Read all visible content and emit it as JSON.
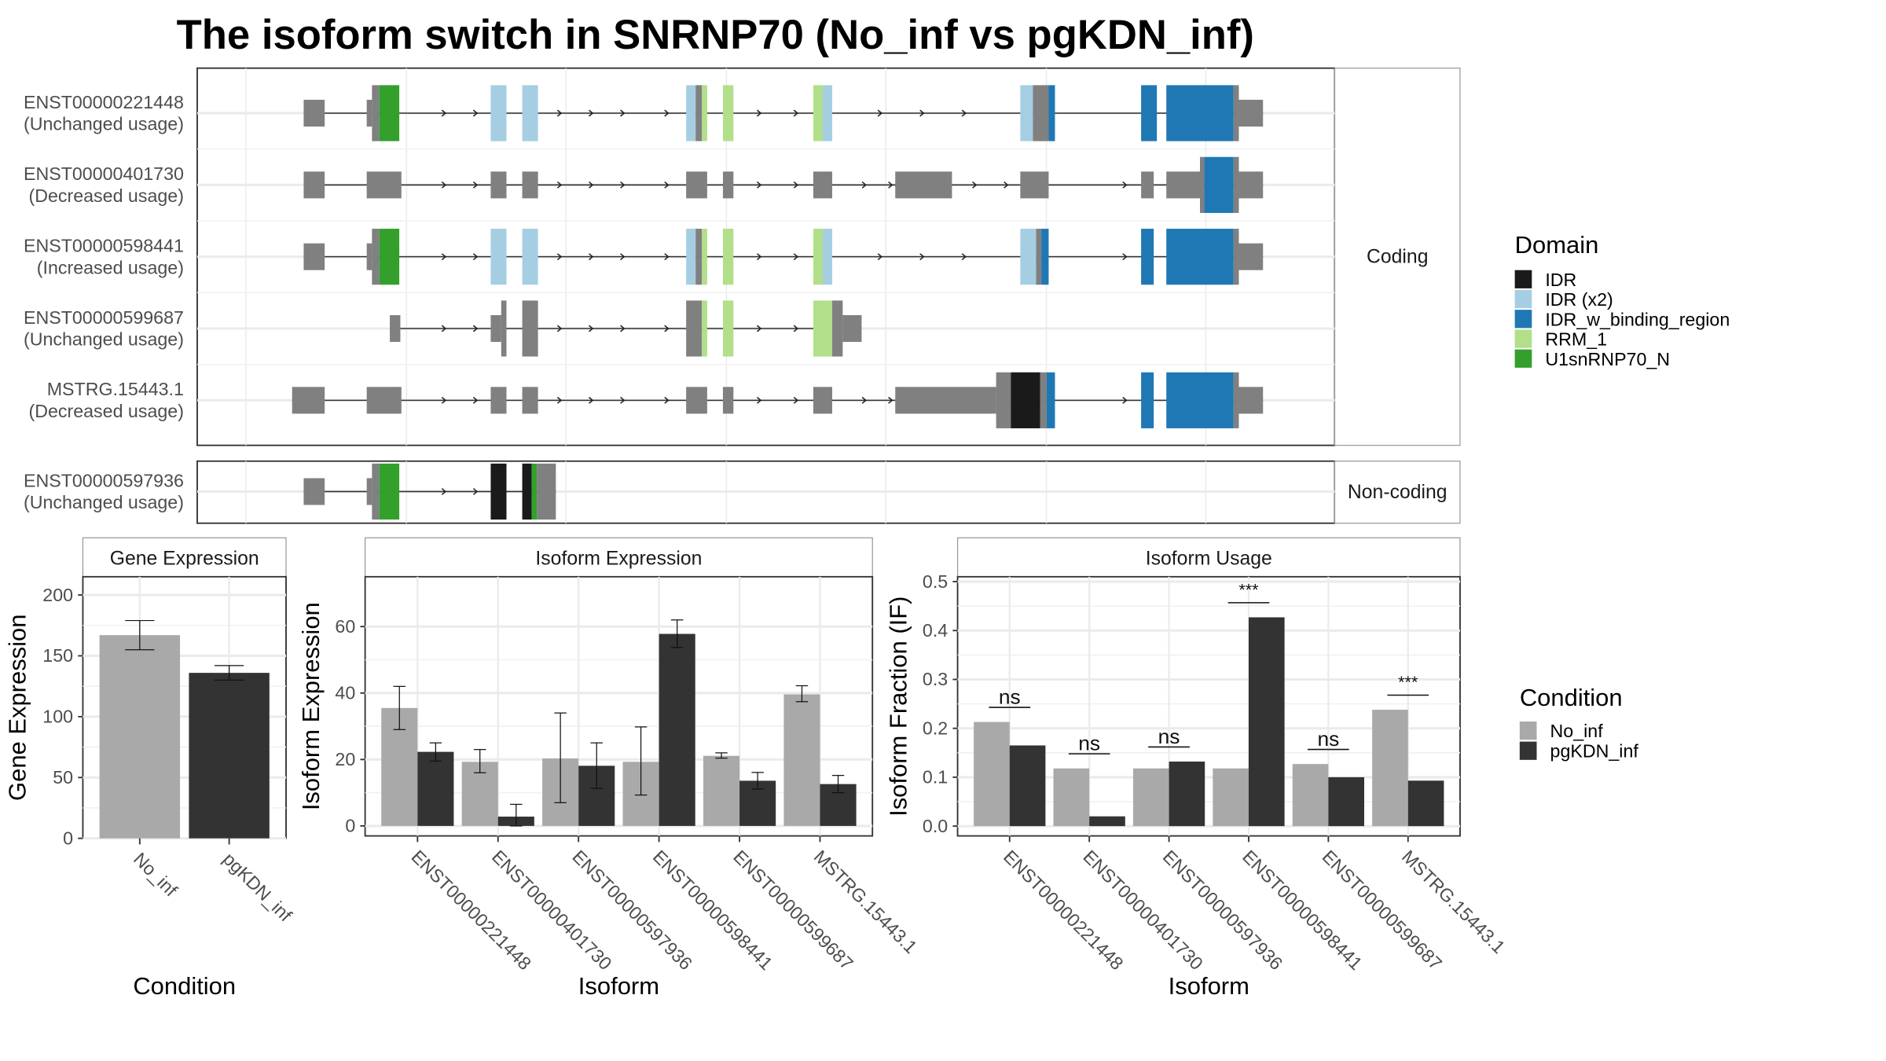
{
  "title": "The isoform switch in SNRNP70 (No_inf vs pgKDN_inf)",
  "domain_legend": {
    "title": "Domain",
    "items": [
      {
        "label": "IDR",
        "color": "#1a1a1a"
      },
      {
        "label": "IDR (x2)",
        "color": "#a6cee3"
      },
      {
        "label": "IDR_w_binding_region",
        "color": "#1f78b4"
      },
      {
        "label": "RRM_1",
        "color": "#b2df8a"
      },
      {
        "label": "U1snRNP70_N",
        "color": "#33a02c"
      }
    ]
  },
  "condition_legend": {
    "title": "Condition",
    "items": [
      {
        "label": "No_inf",
        "color": "#a9a9a9"
      },
      {
        "label": "pgKDN_inf",
        "color": "#333333"
      }
    ]
  },
  "colors": {
    "utr": "#808080",
    "intron": "#333333"
  },
  "chart_data": [
    {
      "type": "transcript-structure",
      "coordinate_units": "relative genomic position (0-1000)",
      "facets": [
        {
          "label": "Coding",
          "transcripts": [
            {
              "id": "ENST00000221448",
              "note": "(Unchanged usage)",
              "exons": [
                {
                  "s": 55,
                  "e": 75,
                  "t": "utr"
                },
                {
                  "s": 115,
                  "e": 120,
                  "t": "utr"
                },
                {
                  "s": 120,
                  "e": 127,
                  "t": "cds"
                },
                {
                  "s": 127,
                  "e": 146,
                  "t": "U1snRNP70_N"
                },
                {
                  "s": 233,
                  "e": 248,
                  "t": "IDR (x2)"
                },
                {
                  "s": 263,
                  "e": 278,
                  "t": "IDR (x2)"
                },
                {
                  "s": 419,
                  "e": 428,
                  "t": "IDR (x2)"
                },
                {
                  "s": 428,
                  "e": 434,
                  "t": "cds"
                },
                {
                  "s": 434,
                  "e": 439,
                  "t": "RRM_1"
                },
                {
                  "s": 454,
                  "e": 464,
                  "t": "RRM_1"
                },
                {
                  "s": 540,
                  "e": 549,
                  "t": "RRM_1"
                },
                {
                  "s": 549,
                  "e": 558,
                  "t": "IDR (x2)"
                },
                {
                  "s": 737,
                  "e": 749,
                  "t": "IDR (x2)"
                },
                {
                  "s": 749,
                  "e": 764,
                  "t": "cds"
                },
                {
                  "s": 764,
                  "e": 770,
                  "t": "IDR_w_binding_region"
                },
                {
                  "s": 852,
                  "e": 867,
                  "t": "IDR_w_binding_region"
                },
                {
                  "s": 876,
                  "e": 940,
                  "t": "IDR_w_binding_region"
                },
                {
                  "s": 940,
                  "e": 945,
                  "t": "cds"
                },
                {
                  "s": 945,
                  "e": 968,
                  "t": "utr"
                }
              ],
              "arrows": [
                190,
                220,
                300,
                330,
                360,
                402,
                490,
                525,
                605,
                645,
                685
              ]
            },
            {
              "id": "ENST00000401730",
              "note": "(Decreased usage)",
              "exons": [
                {
                  "s": 55,
                  "e": 75,
                  "t": "utr"
                },
                {
                  "s": 115,
                  "e": 148,
                  "t": "utr"
                },
                {
                  "s": 233,
                  "e": 248,
                  "t": "utr"
                },
                {
                  "s": 263,
                  "e": 278,
                  "t": "utr"
                },
                {
                  "s": 419,
                  "e": 439,
                  "t": "utr"
                },
                {
                  "s": 454,
                  "e": 464,
                  "t": "utr"
                },
                {
                  "s": 540,
                  "e": 558,
                  "t": "utr"
                },
                {
                  "s": 618,
                  "e": 672,
                  "t": "utr"
                },
                {
                  "s": 737,
                  "e": 764,
                  "t": "utr"
                },
                {
                  "s": 852,
                  "e": 864,
                  "t": "utr"
                },
                {
                  "s": 876,
                  "e": 908,
                  "t": "utr"
                },
                {
                  "s": 908,
                  "e": 912,
                  "t": "cds"
                },
                {
                  "s": 912,
                  "e": 940,
                  "t": "IDR_w_binding_region"
                },
                {
                  "s": 940,
                  "e": 945,
                  "t": "cds"
                },
                {
                  "s": 945,
                  "e": 968,
                  "t": "utr"
                }
              ],
              "arrows": [
                190,
                220,
                300,
                330,
                360,
                402,
                490,
                525,
                590,
                615,
                695,
                725,
                838
              ]
            },
            {
              "id": "ENST00000598441",
              "note": "(Increased usage)",
              "exons": [
                {
                  "s": 55,
                  "e": 75,
                  "t": "utr"
                },
                {
                  "s": 115,
                  "e": 120,
                  "t": "utr"
                },
                {
                  "s": 120,
                  "e": 127,
                  "t": "cds"
                },
                {
                  "s": 127,
                  "e": 146,
                  "t": "U1snRNP70_N"
                },
                {
                  "s": 233,
                  "e": 248,
                  "t": "IDR (x2)"
                },
                {
                  "s": 263,
                  "e": 278,
                  "t": "IDR (x2)"
                },
                {
                  "s": 419,
                  "e": 428,
                  "t": "IDR (x2)"
                },
                {
                  "s": 428,
                  "e": 434,
                  "t": "cds"
                },
                {
                  "s": 434,
                  "e": 439,
                  "t": "RRM_1"
                },
                {
                  "s": 454,
                  "e": 464,
                  "t": "RRM_1"
                },
                {
                  "s": 540,
                  "e": 549,
                  "t": "RRM_1"
                },
                {
                  "s": 549,
                  "e": 558,
                  "t": "IDR (x2)"
                },
                {
                  "s": 737,
                  "e": 752,
                  "t": "IDR (x2)"
                },
                {
                  "s": 752,
                  "e": 757,
                  "t": "cds"
                },
                {
                  "s": 757,
                  "e": 764,
                  "t": "IDR_w_binding_region"
                },
                {
                  "s": 852,
                  "e": 864,
                  "t": "IDR_w_binding_region"
                },
                {
                  "s": 876,
                  "e": 940,
                  "t": "IDR_w_binding_region"
                },
                {
                  "s": 940,
                  "e": 945,
                  "t": "cds"
                },
                {
                  "s": 945,
                  "e": 968,
                  "t": "utr"
                }
              ],
              "arrows": [
                190,
                220,
                300,
                330,
                360,
                402,
                490,
                525,
                605,
                645,
                685,
                838
              ]
            },
            {
              "id": "ENST00000599687",
              "note": "(Unchanged usage)",
              "exons": [
                {
                  "s": 137,
                  "e": 147,
                  "t": "utr"
                },
                {
                  "s": 233,
                  "e": 243,
                  "t": "utr"
                },
                {
                  "s": 243,
                  "e": 248,
                  "t": "cds"
                },
                {
                  "s": 263,
                  "e": 278,
                  "t": "cds"
                },
                {
                  "s": 419,
                  "e": 434,
                  "t": "cds"
                },
                {
                  "s": 434,
                  "e": 439,
                  "t": "RRM_1"
                },
                {
                  "s": 454,
                  "e": 464,
                  "t": "RRM_1"
                },
                {
                  "s": 540,
                  "e": 558,
                  "t": "RRM_1"
                },
                {
                  "s": 558,
                  "e": 568,
                  "t": "cds"
                },
                {
                  "s": 568,
                  "e": 586,
                  "t": "utr"
                }
              ],
              "arrows": [
                190,
                220,
                300,
                330,
                360,
                402,
                490,
                525
              ]
            },
            {
              "id": "MSTRG.15443.1",
              "note": "(Decreased usage)",
              "exons": [
                {
                  "s": 44,
                  "e": 75,
                  "t": "utr"
                },
                {
                  "s": 115,
                  "e": 148,
                  "t": "utr"
                },
                {
                  "s": 233,
                  "e": 248,
                  "t": "utr"
                },
                {
                  "s": 263,
                  "e": 278,
                  "t": "utr"
                },
                {
                  "s": 419,
                  "e": 439,
                  "t": "utr"
                },
                {
                  "s": 454,
                  "e": 464,
                  "t": "utr"
                },
                {
                  "s": 540,
                  "e": 558,
                  "t": "utr"
                },
                {
                  "s": 618,
                  "e": 714,
                  "t": "utr"
                },
                {
                  "s": 714,
                  "e": 728,
                  "t": "cds"
                },
                {
                  "s": 728,
                  "e": 756,
                  "t": "IDR"
                },
                {
                  "s": 756,
                  "e": 762,
                  "t": "cds"
                },
                {
                  "s": 762,
                  "e": 770,
                  "t": "IDR_w_binding_region"
                },
                {
                  "s": 852,
                  "e": 864,
                  "t": "IDR_w_binding_region"
                },
                {
                  "s": 876,
                  "e": 940,
                  "t": "IDR_w_binding_region"
                },
                {
                  "s": 940,
                  "e": 945,
                  "t": "cds"
                },
                {
                  "s": 945,
                  "e": 968,
                  "t": "utr"
                }
              ],
              "arrows": [
                190,
                220,
                300,
                330,
                360,
                402,
                490,
                525,
                590,
                615,
                695,
                838
              ]
            }
          ]
        },
        {
          "label": "Non-coding",
          "transcripts": [
            {
              "id": "ENST00000597936",
              "note": "(Unchanged usage)",
              "exons": [
                {
                  "s": 55,
                  "e": 75,
                  "t": "utr"
                },
                {
                  "s": 115,
                  "e": 120,
                  "t": "utr"
                },
                {
                  "s": 120,
                  "e": 127,
                  "t": "cds"
                },
                {
                  "s": 127,
                  "e": 146,
                  "t": "U1snRNP70_N"
                },
                {
                  "s": 233,
                  "e": 248,
                  "t": "IDR"
                },
                {
                  "s": 263,
                  "e": 272,
                  "t": "IDR"
                },
                {
                  "s": 272,
                  "e": 277,
                  "t": "U1snRNP70_N"
                },
                {
                  "s": 277,
                  "e": 295,
                  "t": "cds"
                }
              ],
              "arrows": [
                190,
                220
              ]
            }
          ]
        }
      ]
    },
    {
      "type": "bar",
      "title": "Gene Expression",
      "xlabel": "Condition",
      "ylabel": "Gene Expression",
      "categories": [
        "No_inf",
        "pgKDN_inf"
      ],
      "values": [
        167,
        136
      ],
      "error_low": [
        155,
        130
      ],
      "error_high": [
        179,
        142
      ],
      "ylim": [
        0,
        215
      ],
      "yticks": [
        0,
        50,
        100,
        150,
        200
      ]
    },
    {
      "type": "bar",
      "title": "Isoform Expression",
      "xlabel": "Isoform",
      "ylabel": "Isoform Expression",
      "categories": [
        "ENST00000221448",
        "ENST00000401730",
        "ENST00000597936",
        "ENST00000598441",
        "ENST00000599687",
        "MSTRG.15443.1"
      ],
      "series": [
        {
          "name": "No_inf",
          "values": [
            35.5,
            19.3,
            20.3,
            19.3,
            21.1,
            39.6
          ],
          "error_low": [
            29.0,
            16.0,
            7.0,
            9.3,
            20.4,
            37.4
          ],
          "error_high": [
            42.0,
            23.0,
            34.0,
            29.8,
            22.0,
            42.2
          ]
        },
        {
          "name": "pgKDN_inf",
          "values": [
            22.3,
            2.8,
            18.1,
            57.8,
            13.6,
            12.6
          ],
          "error_low": [
            19.5,
            0.0,
            11.3,
            53.7,
            11.1,
            10.0
          ],
          "error_high": [
            25.0,
            6.5,
            25.0,
            62.0,
            16.1,
            15.2
          ]
        }
      ],
      "ylim": [
        -3,
        75
      ],
      "yticks": [
        0,
        20,
        40,
        60
      ]
    },
    {
      "type": "bar",
      "title": "Isoform Usage",
      "xlabel": "Isoform",
      "ylabel": "Isoform Fraction (IF)",
      "categories": [
        "ENST00000221448",
        "ENST00000401730",
        "ENST00000597936",
        "ENST00000598441",
        "ENST00000599687",
        "MSTRG.15443.1"
      ],
      "series": [
        {
          "name": "No_inf",
          "values": [
            0.213,
            0.118,
            0.118,
            0.118,
            0.127,
            0.238
          ]
        },
        {
          "name": "pgKDN_inf",
          "values": [
            0.165,
            0.02,
            0.132,
            0.427,
            0.1,
            0.093
          ]
        }
      ],
      "annotations": [
        "ns",
        "ns",
        "ns",
        "***",
        "ns",
        "***"
      ],
      "ylim": [
        -0.02,
        0.51
      ],
      "yticks": [
        "0.0",
        "0.1",
        "0.2",
        "0.3",
        "0.4",
        "0.5"
      ]
    }
  ]
}
